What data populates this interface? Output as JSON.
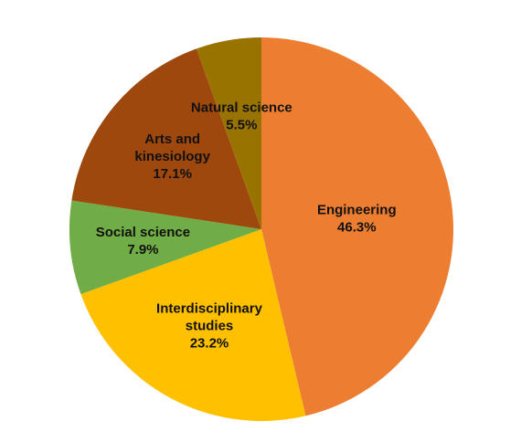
{
  "chart_data": {
    "type": "pie",
    "title": "",
    "start_angle_deg": 0,
    "direction": "clockwise",
    "slices": [
      {
        "label_lines": [
          "Engineering"
        ],
        "value_label": "46.3%",
        "value": 46.3,
        "color": "#ED7D31"
      },
      {
        "label_lines": [
          "Interdisciplinary",
          "studies"
        ],
        "value_label": "23.2%",
        "value": 23.2,
        "color": "#FFC000"
      },
      {
        "label_lines": [
          "Social science"
        ],
        "value_label": "7.9%",
        "value": 7.9,
        "color": "#70AD47"
      },
      {
        "label_lines": [
          "Arts and",
          "kinesiology"
        ],
        "value_label": "17.1%",
        "value": 17.1,
        "color": "#9E480E"
      },
      {
        "label_lines": [
          "Natural science"
        ],
        "value_label": "5.5%",
        "value": 5.5,
        "color": "#997300"
      }
    ],
    "legend": "none",
    "data_labels": "inside"
  }
}
